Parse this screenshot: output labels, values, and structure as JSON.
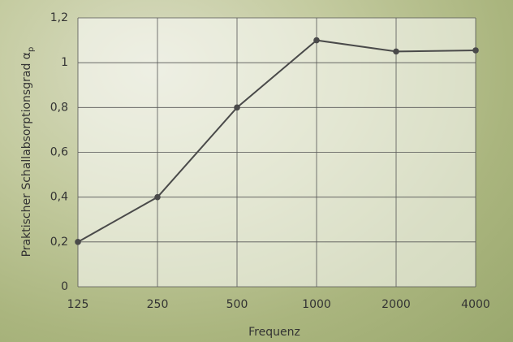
{
  "chart_data": {
    "type": "line",
    "xlabel": "Frequenz",
    "ylabel": "Praktischer Schallabsorptionsgrad α",
    "ylabel_subscript": "p",
    "categories": [
      "125",
      "250",
      "500",
      "1000",
      "2000",
      "4000"
    ],
    "series": [
      {
        "color": "#4a4a4a",
        "values": [
          0.2,
          0.4,
          0.8,
          1.1,
          1.05,
          1.055
        ]
      }
    ],
    "ylim": [
      0,
      1.2
    ],
    "yticks": [
      0,
      {
        "value": 0.2,
        "label": "0,2"
      },
      {
        "value": 0.4,
        "label": "0,4"
      },
      {
        "value": 0.6,
        "label": "0,6"
      },
      {
        "value": 0.8,
        "label": "0,8"
      },
      1,
      {
        "value": 1.2,
        "label": "1,2"
      }
    ],
    "grid": true
  }
}
